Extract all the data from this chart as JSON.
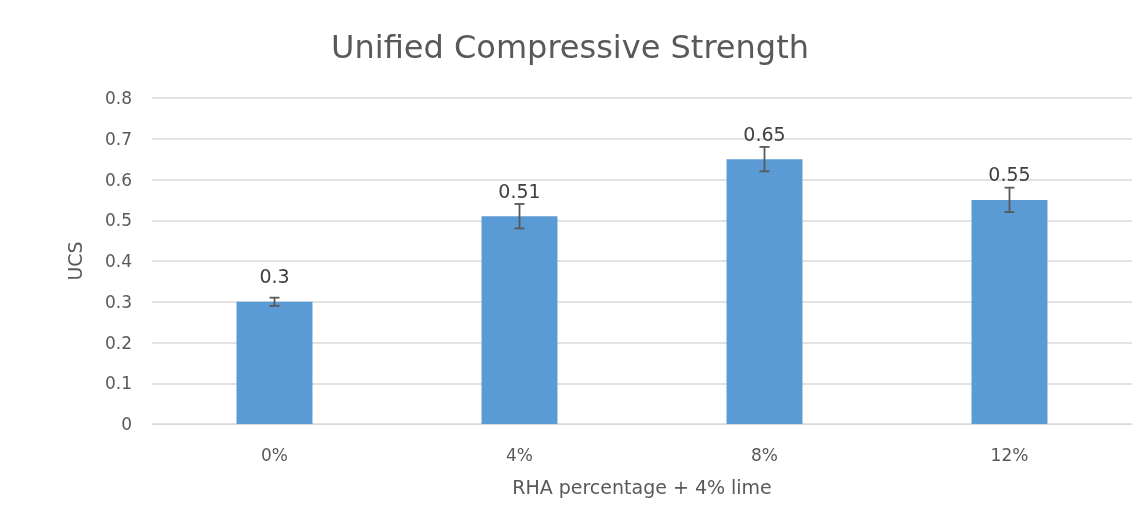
{
  "chart_data": {
    "type": "bar",
    "title": "Unified Compressive Strength",
    "xlabel": "RHA percentage + 4% lime",
    "ylabel": "UCS",
    "categories": [
      "0%",
      "4%",
      "8%",
      "12%"
    ],
    "values": [
      0.3,
      0.51,
      0.65,
      0.55
    ],
    "errors": [
      0.01,
      0.03,
      0.03,
      0.03
    ],
    "color": "#5b9bd5",
    "ylim": [
      0,
      0.8
    ],
    "yticks": [
      0,
      0.1,
      0.2,
      0.3,
      0.4,
      0.5,
      0.6,
      0.7,
      0.8
    ],
    "grid": "y",
    "data_labels": true
  }
}
